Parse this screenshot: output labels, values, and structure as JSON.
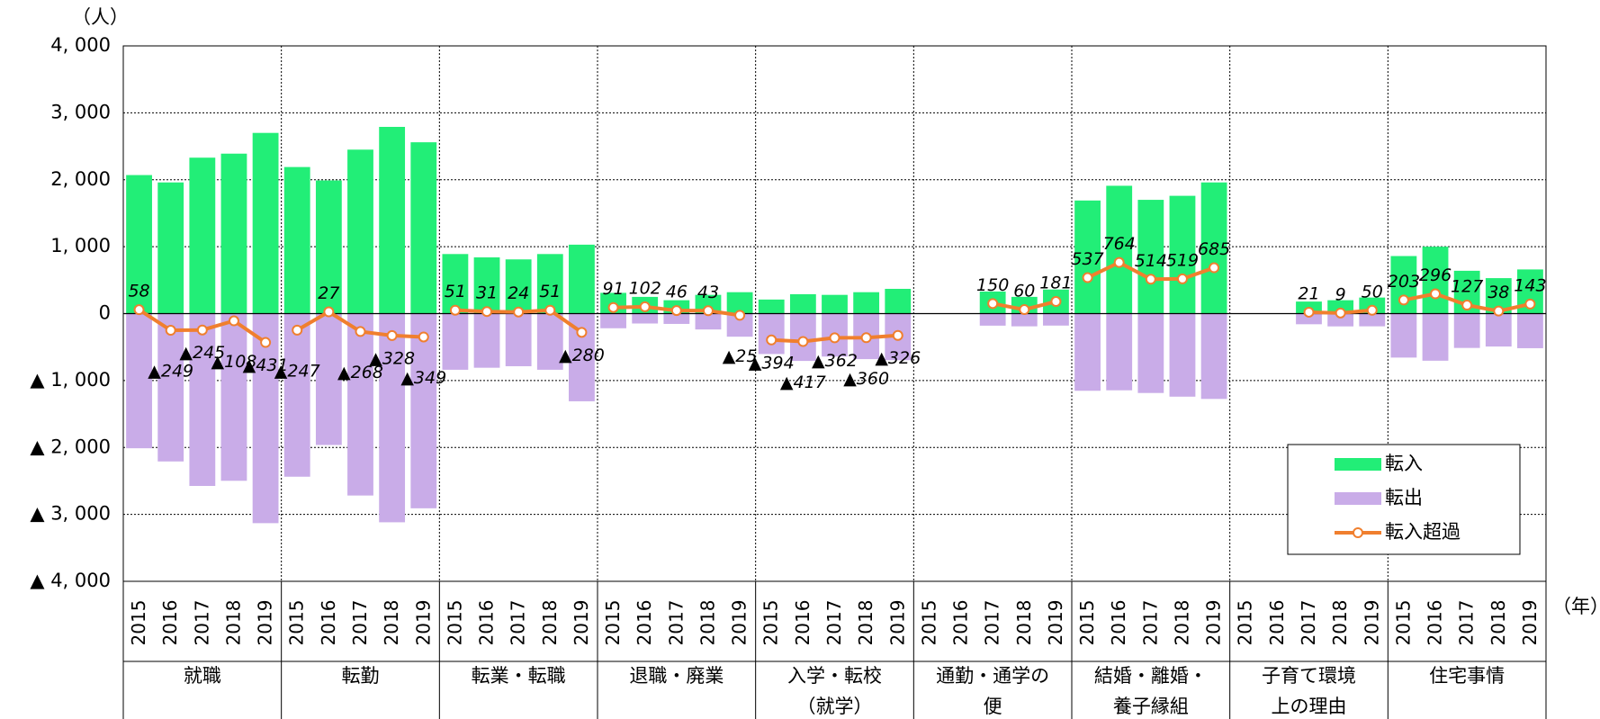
{
  "chart_data": {
    "type": "bar",
    "y_unit": "（人）",
    "x_unit": "（年）",
    "groups": [
      "就職",
      "転勤",
      "転業・転職",
      "退職・廃業",
      "入学・転校\n（就学）",
      "通勤・通学の\n便",
      "結婚・離婚・\n養子縁組",
      "子育て環境\n上の理由",
      "住宅事情"
    ],
    "categories": [
      "2015",
      "2016",
      "2017",
      "2018",
      "2019",
      "2015",
      "2016",
      "2017",
      "2018",
      "2019",
      "2015",
      "2016",
      "2017",
      "2018",
      "2019",
      "2015",
      "2016",
      "2017",
      "2018",
      "2019",
      "2015",
      "2016",
      "2017",
      "2018",
      "2019",
      "2015",
      "2016",
      "2017",
      "2018",
      "2019",
      "2015",
      "2016",
      "2017",
      "2018",
      "2019",
      "2015",
      "2016",
      "2017",
      "2018",
      "2019",
      "2015",
      "2016",
      "2017",
      "2018",
      "2019"
    ],
    "series": [
      {
        "name": "転入",
        "type": "bar",
        "color": "#22ee77",
        "values": [
          2070,
          1960,
          2330,
          2390,
          2700,
          2190,
          1990,
          2450,
          2790,
          2560,
          890,
          840,
          810,
          890,
          1030,
          310,
          250,
          200,
          280,
          320,
          210,
          290,
          280,
          320,
          370,
          null,
          null,
          330,
          250,
          360,
          1690,
          1910,
          1700,
          1760,
          1960,
          null,
          null,
          180,
          200,
          240,
          860,
          1000,
          640,
          530,
          660
        ]
      },
      {
        "name": "転出",
        "type": "bar",
        "color": "#c9ace8",
        "values": [
          -2012,
          -2209,
          -2575,
          -2498,
          -3131,
          -2437,
          -1963,
          -2718,
          -3118,
          -2909,
          -839,
          -809,
          -786,
          -839,
          -1310,
          -219,
          -148,
          -154,
          -237,
          -345,
          -604,
          -707,
          -642,
          -680,
          -696,
          null,
          null,
          -180,
          -190,
          -179,
          -1153,
          -1146,
          -1186,
          -1241,
          -1275,
          null,
          null,
          -159,
          -191,
          -190,
          -657,
          -704,
          -513,
          -492,
          -517
        ]
      },
      {
        "name": "転入超過",
        "type": "line",
        "color": "#f07f2e",
        "values": [
          58,
          -249,
          -245,
          -108,
          -431,
          -247,
          27,
          -268,
          -328,
          -349,
          51,
          31,
          24,
          51,
          -280,
          91,
          102,
          46,
          43,
          -25,
          -394,
          -417,
          -362,
          -360,
          -326,
          null,
          null,
          150,
          60,
          181,
          537,
          764,
          514,
          519,
          685,
          null,
          null,
          21,
          9,
          50,
          203,
          296,
          127,
          38,
          143
        ],
        "value_labels": [
          "58",
          "▲249",
          "▲245",
          "▲108",
          "▲431",
          "▲247",
          "27",
          "▲268",
          "▲328",
          "▲349",
          "51",
          "31",
          "24",
          "51",
          "▲280",
          "91",
          "102",
          "46",
          "43",
          "▲25",
          "▲394",
          "▲417",
          "▲362",
          "▲360",
          "▲326",
          null,
          null,
          "150",
          "60",
          "181",
          "537",
          "764",
          "514",
          "519",
          "685",
          null,
          null,
          "21",
          "9",
          "50",
          "203",
          "296",
          "127",
          "38",
          "143"
        ]
      }
    ],
    "ylim": [
      -4000,
      4000
    ],
    "yticks": [
      {
        "value": 4000,
        "label": "4, 000"
      },
      {
        "value": 3000,
        "label": "3, 000"
      },
      {
        "value": 2000,
        "label": "2, 000"
      },
      {
        "value": 1000,
        "label": "1, 000"
      },
      0,
      {
        "value": -1000,
        "label": "▲ 1, 000"
      },
      {
        "value": -2000,
        "label": "▲ 2, 000"
      },
      {
        "value": -3000,
        "label": "▲ 3, 000"
      },
      {
        "value": -4000,
        "label": "▲ 4, 000"
      }
    ],
    "grid": true,
    "legend": "lower right"
  }
}
